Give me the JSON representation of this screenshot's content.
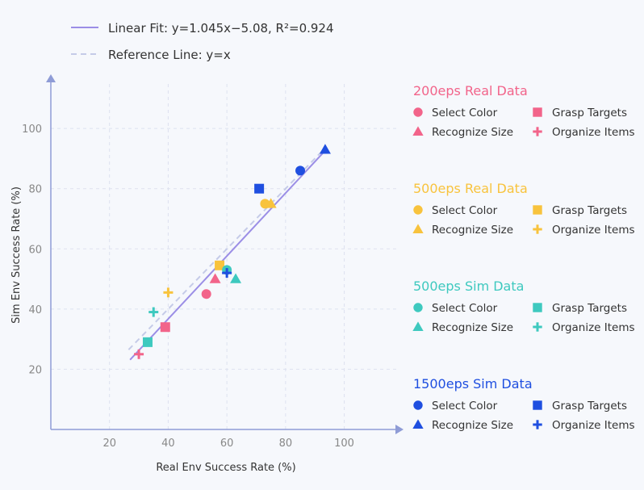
{
  "chart_data": {
    "type": "scatter",
    "xlabel": "Real Env Success Rate (%)",
    "ylabel": "Sim Env Success Rate (%)",
    "xlim": [
      0,
      118
    ],
    "ylim": [
      0,
      118
    ],
    "xticks": [
      20,
      40,
      60,
      80,
      100
    ],
    "yticks": [
      20,
      40,
      60,
      80,
      100
    ],
    "grid": true,
    "legend_placement": "right",
    "fit": {
      "label": "Linear Fit: y=1.045x−5.08, R²=0.924",
      "slope": 1.045,
      "intercept": -5.08,
      "x_range": [
        27,
        93.5
      ],
      "color": "#9b8ee6"
    },
    "reference": {
      "label": "Reference Line: y=x",
      "x_range": [
        26.5,
        93
      ],
      "color": "#c5cbe8"
    },
    "task_labels": {
      "select": "Select Color",
      "grasp": "Grasp Targets",
      "recognize": "Recognize Size",
      "organize": "Organize Items"
    },
    "groups": [
      {
        "name": "200eps Real Data",
        "color": "#f2648a",
        "points": [
          {
            "task": "select",
            "marker": "circle",
            "x": 53,
            "y": 45
          },
          {
            "task": "grasp",
            "marker": "square",
            "x": 39,
            "y": 34
          },
          {
            "task": "recognize",
            "marker": "triangle",
            "x": 56,
            "y": 50
          },
          {
            "task": "organize",
            "marker": "plus",
            "x": 30,
            "y": 25
          }
        ]
      },
      {
        "name": "500eps Real Data",
        "color": "#f8c33d",
        "points": [
          {
            "task": "select",
            "marker": "circle",
            "x": 73,
            "y": 75
          },
          {
            "task": "grasp",
            "marker": "square",
            "x": 57.5,
            "y": 54.5
          },
          {
            "task": "recognize",
            "marker": "triangle",
            "x": 75,
            "y": 75
          },
          {
            "task": "organize",
            "marker": "plus",
            "x": 40,
            "y": 45.5
          }
        ]
      },
      {
        "name": "500eps Sim Data",
        "color": "#3ec9bf",
        "points": [
          {
            "task": "select",
            "marker": "circle",
            "x": 60,
            "y": 53
          },
          {
            "task": "grasp",
            "marker": "square",
            "x": 33,
            "y": 29
          },
          {
            "task": "recognize",
            "marker": "triangle",
            "x": 63,
            "y": 50
          },
          {
            "task": "organize",
            "marker": "plus",
            "x": 35,
            "y": 39
          }
        ]
      },
      {
        "name": "1500eps Sim Data",
        "color": "#1f4fe0",
        "points": [
          {
            "task": "select",
            "marker": "circle",
            "x": 85,
            "y": 86
          },
          {
            "task": "grasp",
            "marker": "square",
            "x": 71,
            "y": 80
          },
          {
            "task": "recognize",
            "marker": "triangle",
            "x": 93.5,
            "y": 93
          },
          {
            "task": "organize",
            "marker": "plus",
            "x": 60,
            "y": 52
          }
        ]
      }
    ]
  }
}
